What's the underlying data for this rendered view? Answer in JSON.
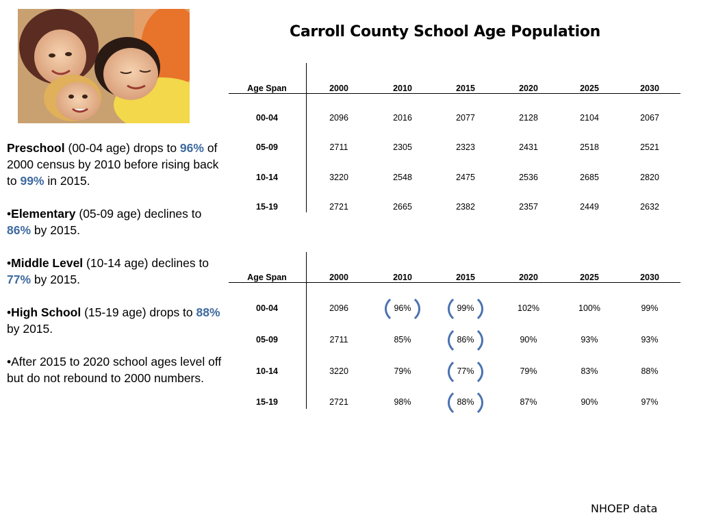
{
  "title": "Carroll County School Age Population",
  "summary": {
    "p1": {
      "bold": "Preschool",
      "t1": " (00-04 age) drops to ",
      "pct1": "96%",
      "t2": " of 2000 census by 2010 before rising back to ",
      "pct2": "99%",
      "t3": " in 2015."
    },
    "p2": {
      "bullet": "•",
      "bold": "Elementary",
      "t1": " (05-09 age) declines to ",
      "pct1": "86%",
      "t2": " by 2015."
    },
    "p3": {
      "bullet": "•",
      "bold": "Middle Level",
      "t1": " (10-14 age) declines to ",
      "pct1": "77%",
      "t2": " by 2015."
    },
    "p4": {
      "bullet": "•",
      "bold": "High School",
      "t1": " (15-19 age) drops to ",
      "pct1": "88%",
      "t2": " by 2015."
    },
    "p5": {
      "text": "•After 2015 to 2020 school ages level off but do not rebound to 2000 numbers."
    }
  },
  "table1": {
    "headers": [
      "Age Span",
      "2000",
      "2010",
      "2015",
      "2020",
      "2025",
      "2030"
    ],
    "rows": [
      [
        "00-04",
        "2096",
        "2016",
        "2077",
        "2128",
        "2104",
        "2067"
      ],
      [
        "05-09",
        "2711",
        "2305",
        "2323",
        "2431",
        "2518",
        "2521"
      ],
      [
        "10-14",
        "3220",
        "2548",
        "2475",
        "2536",
        "2685",
        "2820"
      ],
      [
        "15-19",
        "2721",
        "2665",
        "2382",
        "2357",
        "2449",
        "2632"
      ]
    ]
  },
  "table2": {
    "headers": [
      "Age Span",
      "2000",
      "2010",
      "2015",
      "2020",
      "2025",
      "2030"
    ],
    "rows": [
      [
        "00-04",
        "2096",
        "96%",
        "99%",
        "102%",
        "100%",
        "99%"
      ],
      [
        "05-09",
        "2711",
        "85%",
        "86%",
        "90%",
        "93%",
        "93%"
      ],
      [
        "10-14",
        "3220",
        "79%",
        "77%",
        "79%",
        "83%",
        "88%"
      ],
      [
        "15-19",
        "2721",
        "98%",
        "88%",
        "87%",
        "90%",
        "97%"
      ]
    ]
  },
  "source": "NHOEP data",
  "colors": {
    "accent": "#3f6aa0",
    "highlight_circle": "#4b72b0"
  }
}
